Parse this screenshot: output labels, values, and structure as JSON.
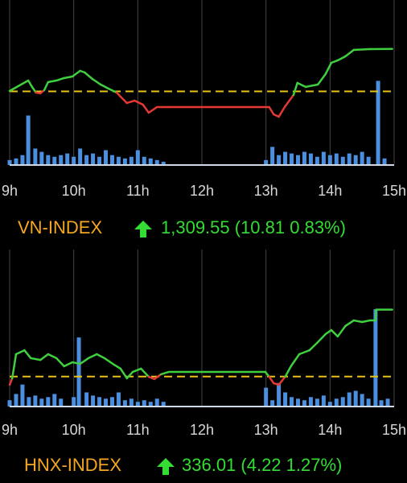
{
  "chart_data": [
    {
      "type": "line",
      "title": "VN-INDEX",
      "quote": "1,309.55 (10.81 0.83%)",
      "xlim": [
        9,
        15
      ],
      "ylim": [
        1280,
        1322
      ],
      "xticks": [
        {
          "value": 9,
          "label": "9h"
        },
        {
          "value": 10,
          "label": "10h"
        },
        {
          "value": 11,
          "label": "11h"
        },
        {
          "value": 12,
          "label": "12h"
        },
        {
          "value": 13,
          "label": "13h"
        },
        {
          "value": 14,
          "label": "14h"
        },
        {
          "value": 15,
          "label": "15h"
        }
      ],
      "reference": 1298.74,
      "up_color": "#3fcf3f",
      "down_color": "#e53935",
      "reference_color": "#e8c21a",
      "grid": true,
      "x": [
        9.0,
        9.29,
        9.35,
        9.41,
        9.48,
        9.54,
        9.6,
        9.73,
        9.85,
        9.98,
        10.1,
        10.17,
        10.29,
        10.42,
        10.54,
        10.67,
        10.73,
        10.83,
        10.95,
        11.08,
        11.17,
        11.3,
        11.48,
        13.05,
        13.12,
        13.2,
        13.3,
        13.43,
        13.49,
        13.62,
        13.81,
        13.93,
        14.02,
        14.12,
        14.24,
        14.37,
        14.62,
        14.97
      ],
      "values": [
        1298.85,
        1301.51,
        1299.88,
        1298.44,
        1298.24,
        1299.06,
        1301.1,
        1301.51,
        1302.13,
        1302.54,
        1303.97,
        1303.56,
        1301.92,
        1300.49,
        1299.47,
        1298.44,
        1297.42,
        1295.78,
        1296.39,
        1295.37,
        1293.32,
        1294.75,
        1294.75,
        1294.75,
        1292.91,
        1292.29,
        1294.96,
        1297.83,
        1300.9,
        1299.88,
        1300.49,
        1303.15,
        1306.02,
        1306.64,
        1307.66,
        1309.3,
        1309.51,
        1309.55
      ],
      "volume": {
        "color": "#4a8fe0",
        "ylim": [
          0,
          100
        ],
        "x": [
          9.0,
          9.1,
          9.2,
          9.29,
          9.4,
          9.5,
          9.6,
          9.7,
          9.8,
          9.9,
          10.0,
          10.1,
          10.2,
          10.3,
          10.4,
          10.5,
          10.6,
          10.7,
          10.8,
          10.9,
          11.0,
          11.1,
          11.2,
          11.3,
          11.4,
          13.0,
          13.1,
          13.2,
          13.3,
          13.4,
          13.5,
          13.6,
          13.7,
          13.8,
          13.9,
          14.0,
          14.1,
          14.2,
          14.3,
          14.4,
          14.5,
          14.6,
          14.75,
          14.85
        ],
        "values": [
          3,
          4,
          6,
          30,
          10,
          8,
          6,
          5,
          6,
          7,
          5,
          10,
          6,
          7,
          5,
          9,
          6,
          5,
          4,
          5,
          9,
          5,
          4,
          3,
          2,
          3,
          11,
          6,
          8,
          7,
          6,
          8,
          7,
          5,
          8,
          6,
          7,
          5,
          7,
          6,
          8,
          5,
          51,
          4
        ]
      }
    },
    {
      "type": "line",
      "title": "HNX-INDEX",
      "quote": "336.01 (4.22 1.27%)",
      "xlim": [
        9,
        15
      ],
      "ylim": [
        329.9,
        339.8
      ],
      "xticks": [
        {
          "value": 9,
          "label": "9h"
        },
        {
          "value": 10,
          "label": "10h"
        },
        {
          "value": 11,
          "label": "11h"
        },
        {
          "value": 12,
          "label": "12h"
        },
        {
          "value": 13,
          "label": "13h"
        },
        {
          "value": 14,
          "label": "14h"
        },
        {
          "value": 15,
          "label": "15h"
        }
      ],
      "reference": 331.79,
      "up_color": "#3fcf3f",
      "down_color": "#e53935",
      "reference_color": "#e8c21a",
      "grid": true,
      "x": [
        9.0,
        9.04,
        9.1,
        9.23,
        9.33,
        9.48,
        9.6,
        9.73,
        9.85,
        9.98,
        10.1,
        10.23,
        10.36,
        10.48,
        10.61,
        10.73,
        10.83,
        10.92,
        11.05,
        11.17,
        11.26,
        11.36,
        11.48,
        12.99,
        13.05,
        13.12,
        13.2,
        13.3,
        13.39,
        13.52,
        13.68,
        13.81,
        13.93,
        14.02,
        14.12,
        14.24,
        14.37,
        14.5,
        14.62,
        14.71,
        14.72,
        14.97
      ],
      "values": [
        331.27,
        331.68,
        333.2,
        333.45,
        332.95,
        332.84,
        333.2,
        332.95,
        332.44,
        332.69,
        332.59,
        332.95,
        333.2,
        332.95,
        332.59,
        332.29,
        331.68,
        332.08,
        332.29,
        331.78,
        331.63,
        331.93,
        332.08,
        332.08,
        331.78,
        331.37,
        331.27,
        331.78,
        332.44,
        333.2,
        333.45,
        333.96,
        334.47,
        334.72,
        334.32,
        334.98,
        335.33,
        335.23,
        335.33,
        335.33,
        336.01,
        336.01
      ],
      "volume": {
        "color": "#4a8fe0",
        "ylim": [
          0,
          100
        ],
        "x": [
          9.0,
          9.1,
          9.2,
          9.3,
          9.4,
          9.5,
          9.6,
          9.7,
          9.8,
          10.0,
          10.08,
          10.2,
          10.3,
          10.4,
          10.5,
          10.6,
          10.7,
          10.8,
          10.9,
          11.0,
          11.1,
          11.2,
          11.3,
          11.4,
          13.0,
          13.1,
          13.2,
          13.3,
          13.4,
          13.5,
          13.6,
          13.7,
          13.8,
          13.9,
          14.0,
          14.1,
          14.2,
          14.3,
          14.4,
          14.5,
          14.6,
          14.71,
          14.8,
          14.9
        ],
        "values": [
          4,
          8,
          14,
          6,
          7,
          5,
          6,
          8,
          5,
          6,
          44,
          9,
          7,
          6,
          5,
          6,
          9,
          4,
          5,
          3,
          4,
          3,
          5,
          3,
          12,
          4,
          15,
          9,
          6,
          5,
          4,
          6,
          5,
          7,
          3,
          5,
          6,
          9,
          10,
          8,
          5,
          62,
          4,
          5
        ]
      }
    }
  ]
}
